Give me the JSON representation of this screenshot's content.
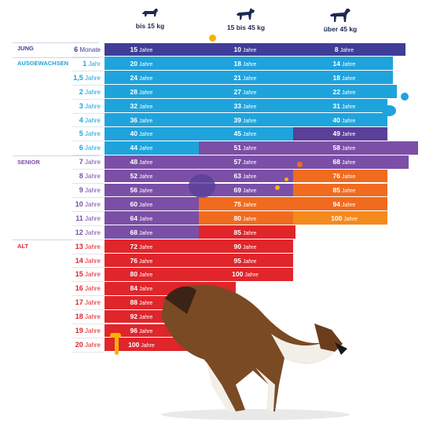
{
  "colors": {
    "jung": "#3f3d97",
    "ausgewachsen": "#1fa3dc",
    "senior": "#7b4fa6",
    "alt": "#e0252b",
    "orange": "#f06b1e",
    "orange_light": "#f48a1c",
    "purple_mid": "#5b3f99",
    "text_dark": "#1c2a52"
  },
  "header": {
    "col1_label": "bis 15 kg",
    "col2_label": "15 bis 45 kg",
    "col3_label": "über 45 kg",
    "col1_icon": "small-dog-icon",
    "col2_icon": "medium-dog-icon",
    "col3_icon": "large-dog-icon"
  },
  "stages": [
    {
      "label": "JUNG",
      "color": "#3f3d97"
    },
    {
      "label": "AUSGEWACHSEN",
      "color": "#1fa3dc"
    },
    {
      "label": "SENIOR",
      "color": "#7b4fa6"
    },
    {
      "label": "ALT",
      "color": "#e0252b"
    }
  ],
  "image": {
    "dog_photo": "sheltie-dog-jumping"
  },
  "chart_data": {
    "type": "table",
    "columns": [
      "bis 15 kg",
      "15 bis 45 kg",
      "über 45 kg"
    ],
    "rows": [
      {
        "age_num": "6",
        "age_unit": "Monate",
        "stage": "JUNG",
        "cells": [
          {
            "num": "15",
            "unit": "Jahre",
            "color": "#3f3d97"
          },
          {
            "num": "10",
            "unit": "Jahre",
            "color": "#3f3d97"
          },
          {
            "num": "8",
            "unit": "Jahre",
            "color": "#3f3d97"
          }
        ]
      },
      {
        "age_num": "1",
        "age_unit": "Jahr",
        "stage": "AUSGEWACHSEN",
        "cells": [
          {
            "num": "20",
            "unit": "Jahre",
            "color": "#1fa3dc"
          },
          {
            "num": "18",
            "unit": "Jahre",
            "color": "#1fa3dc"
          },
          {
            "num": "14",
            "unit": "Jahre",
            "color": "#1fa3dc"
          }
        ]
      },
      {
        "age_num": "1,5",
        "age_unit": "Jahre",
        "stage": "AUSGEWACHSEN",
        "cells": [
          {
            "num": "24",
            "unit": "Jahre",
            "color": "#1fa3dc"
          },
          {
            "num": "21",
            "unit": "Jahre",
            "color": "#1fa3dc"
          },
          {
            "num": "18",
            "unit": "Jahre",
            "color": "#1fa3dc"
          }
        ]
      },
      {
        "age_num": "2",
        "age_unit": "Jahre",
        "stage": "AUSGEWACHSEN",
        "cells": [
          {
            "num": "28",
            "unit": "Jahre",
            "color": "#1fa3dc"
          },
          {
            "num": "27",
            "unit": "Jahre",
            "color": "#1fa3dc"
          },
          {
            "num": "22",
            "unit": "Jahre",
            "color": "#1fa3dc"
          }
        ]
      },
      {
        "age_num": "3",
        "age_unit": "Jahre",
        "stage": "AUSGEWACHSEN",
        "cells": [
          {
            "num": "32",
            "unit": "Jahre",
            "color": "#1fa3dc"
          },
          {
            "num": "33",
            "unit": "Jahre",
            "color": "#1fa3dc"
          },
          {
            "num": "31",
            "unit": "Jahre",
            "color": "#1fa3dc"
          }
        ]
      },
      {
        "age_num": "4",
        "age_unit": "Jahre",
        "stage": "AUSGEWACHSEN",
        "cells": [
          {
            "num": "36",
            "unit": "Jahre",
            "color": "#1fa3dc"
          },
          {
            "num": "39",
            "unit": "Jahre",
            "color": "#1fa3dc"
          },
          {
            "num": "40",
            "unit": "Jahre",
            "color": "#1fa3dc"
          }
        ]
      },
      {
        "age_num": "5",
        "age_unit": "Jahre",
        "stage": "AUSGEWACHSEN",
        "cells": [
          {
            "num": "40",
            "unit": "Jahre",
            "color": "#1fa3dc"
          },
          {
            "num": "45",
            "unit": "Jahre",
            "color": "#1fa3dc"
          },
          {
            "num": "49",
            "unit": "Jahre",
            "color": "#5b3f99"
          }
        ]
      },
      {
        "age_num": "6",
        "age_unit": "Jahre",
        "stage": "AUSGEWACHSEN",
        "cells": [
          {
            "num": "44",
            "unit": "Jahre",
            "color": "#1fa3dc"
          },
          {
            "num": "51",
            "unit": "Jahre",
            "color": "#7b4fa6"
          },
          {
            "num": "58",
            "unit": "Jahre",
            "color": "#7b4fa6"
          }
        ]
      },
      {
        "age_num": "7",
        "age_unit": "Jahre",
        "stage": "SENIOR",
        "cells": [
          {
            "num": "48",
            "unit": "Jahre",
            "color": "#7b4fa6"
          },
          {
            "num": "57",
            "unit": "Jahre",
            "color": "#7b4fa6"
          },
          {
            "num": "68",
            "unit": "Jahre",
            "color": "#7b4fa6"
          }
        ]
      },
      {
        "age_num": "8",
        "age_unit": "Jahre",
        "stage": "SENIOR",
        "cells": [
          {
            "num": "52",
            "unit": "Jahre",
            "color": "#7b4fa6"
          },
          {
            "num": "63",
            "unit": "Jahre",
            "color": "#7b4fa6"
          },
          {
            "num": "76",
            "unit": "Jahre",
            "color": "#f06b1e"
          }
        ]
      },
      {
        "age_num": "9",
        "age_unit": "Jahre",
        "stage": "SENIOR",
        "cells": [
          {
            "num": "56",
            "unit": "Jahre",
            "color": "#7b4fa6"
          },
          {
            "num": "69",
            "unit": "Jahre",
            "color": "#7b4fa6"
          },
          {
            "num": "85",
            "unit": "Jahre",
            "color": "#f06b1e"
          }
        ]
      },
      {
        "age_num": "10",
        "age_unit": "Jahre",
        "stage": "SENIOR",
        "cells": [
          {
            "num": "60",
            "unit": "Jahre",
            "color": "#7b4fa6"
          },
          {
            "num": "75",
            "unit": "Jahre",
            "color": "#f06b1e"
          },
          {
            "num": "94",
            "unit": "Jahre",
            "color": "#f06b1e"
          }
        ]
      },
      {
        "age_num": "11",
        "age_unit": "Jahre",
        "stage": "SENIOR",
        "cells": [
          {
            "num": "64",
            "unit": "Jahre",
            "color": "#7b4fa6"
          },
          {
            "num": "80",
            "unit": "Jahre",
            "color": "#f06b1e"
          },
          {
            "num": "100",
            "unit": "Jahre",
            "color": "#f48a1c"
          }
        ]
      },
      {
        "age_num": "12",
        "age_unit": "Jahre",
        "stage": "SENIOR",
        "cells": [
          {
            "num": "68",
            "unit": "Jahre",
            "color": "#7b4fa6"
          },
          {
            "num": "85",
            "unit": "Jahre",
            "color": "#e0252b"
          },
          null
        ]
      },
      {
        "age_num": "13",
        "age_unit": "Jahre",
        "stage": "ALT",
        "cells": [
          {
            "num": "72",
            "unit": "Jahre",
            "color": "#e0252b"
          },
          {
            "num": "90",
            "unit": "Jahre",
            "color": "#e0252b"
          },
          null
        ]
      },
      {
        "age_num": "14",
        "age_unit": "Jahre",
        "stage": "ALT",
        "cells": [
          {
            "num": "76",
            "unit": "Jahre",
            "color": "#e0252b"
          },
          {
            "num": "95",
            "unit": "Jahre",
            "color": "#e0252b"
          },
          null
        ]
      },
      {
        "age_num": "15",
        "age_unit": "Jahre",
        "stage": "ALT",
        "cells": [
          {
            "num": "80",
            "unit": "Jahre",
            "color": "#e0252b"
          },
          {
            "num": "100",
            "unit": "Jahre",
            "color": "#e0252b"
          },
          null
        ]
      },
      {
        "age_num": "16",
        "age_unit": "Jahre",
        "stage": "ALT",
        "cells": [
          {
            "num": "84",
            "unit": "Jahre",
            "color": "#e0252b"
          },
          null,
          null
        ]
      },
      {
        "age_num": "17",
        "age_unit": "Jahre",
        "stage": "ALT",
        "cells": [
          {
            "num": "88",
            "unit": "Jahre",
            "color": "#e0252b"
          },
          null,
          null
        ]
      },
      {
        "age_num": "18",
        "age_unit": "Jahre",
        "stage": "ALT",
        "cells": [
          {
            "num": "92",
            "unit": "Jahre",
            "color": "#e0252b"
          },
          null,
          null
        ]
      },
      {
        "age_num": "19",
        "age_unit": "Jahre",
        "stage": "ALT",
        "cells": [
          {
            "num": "96",
            "unit": "Jahre",
            "color": "#e0252b"
          },
          null,
          null
        ]
      },
      {
        "age_num": "20",
        "age_unit": "Jahre",
        "stage": "ALT",
        "cells": [
          {
            "num": "100",
            "unit": "Jahre",
            "color": "#e0252b"
          },
          null,
          null
        ]
      }
    ]
  }
}
